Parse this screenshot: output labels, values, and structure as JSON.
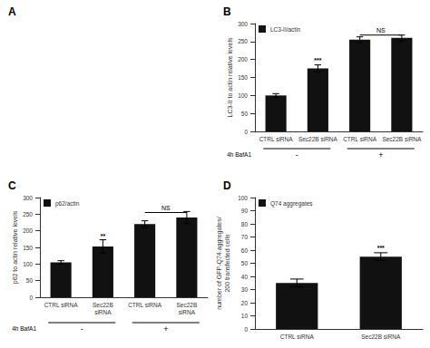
{
  "chart_data": [
    {
      "type": "blank",
      "title": "A"
    },
    {
      "type": "bar",
      "title": "B",
      "ylabel": "LC3-II to actin relative levels",
      "categories": [
        "CTRL siRNA",
        "Sec22B siRNA",
        "CTRL siRNA",
        "Sec22B siRNA"
      ],
      "series": [
        {
          "name": "LC3-II/actin",
          "color": "#111111",
          "values": [
            100,
            175,
            255,
            260
          ],
          "errors": [
            5,
            10,
            8,
            8
          ]
        }
      ],
      "ylim": [
        0,
        300
      ],
      "yticks": [
        0,
        50,
        100,
        150,
        200,
        250,
        300
      ],
      "grid": false,
      "legend": "upper left",
      "annotations": [
        {
          "text": "***",
          "bar": 1,
          "y": 188
        },
        {
          "text": "NS",
          "bar_left": 2,
          "bar_right": 3,
          "y_line": 268,
          "y": 270
        }
      ],
      "group_labels": [
        "-",
        "-",
        "+",
        "+"
      ],
      "group_title": "4h BafA1"
    },
    {
      "type": "bar",
      "title": "C",
      "ylabel": "p62 to actin relative levels",
      "categories": [
        "CTRL siRNA",
        "Sec22B\nsiRNA",
        "CTRL siRNA",
        "Sec22B\nsiRNA"
      ],
      "series": [
        {
          "name": "p62/actin",
          "color": "#111111",
          "values": [
            105,
            153,
            220,
            240
          ],
          "errors": [
            5,
            20,
            10,
            18
          ]
        }
      ],
      "ylim": [
        0,
        300
      ],
      "yticks": [
        0,
        50,
        100,
        150,
        200,
        250,
        300
      ],
      "grid": false,
      "legend": "upper left",
      "annotations": [
        {
          "text": "**",
          "bar": 1,
          "y": 175
        },
        {
          "text": "NS",
          "bar_left": 2,
          "bar_right": 3,
          "y_line": 255,
          "y": 257
        }
      ],
      "group_labels": [
        "-",
        "-",
        "+",
        "+"
      ],
      "group_title": "4h BafA1"
    },
    {
      "type": "bar",
      "title": "D",
      "ylabel": "number of GFP-Q74 aggregates/\n200 transfected cells",
      "categories": [
        "CTRL siRNA",
        "Sec22B siRNA"
      ],
      "series": [
        {
          "name": "Q74 aggregates",
          "color": "#111111",
          "values": [
            35,
            55
          ],
          "errors": [
            3,
            3
          ]
        }
      ],
      "ylim": [
        0,
        100
      ],
      "yticks": [
        0,
        10,
        20,
        30,
        40,
        50,
        60,
        70,
        80,
        90,
        100
      ],
      "grid": false,
      "legend": "upper left",
      "annotations": [
        {
          "text": "***",
          "bar": 1,
          "y": 59
        }
      ]
    }
  ]
}
